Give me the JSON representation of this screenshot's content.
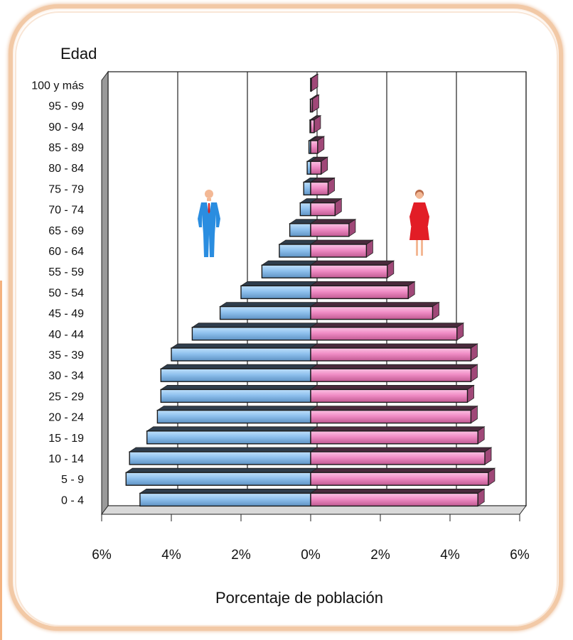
{
  "chart_data": {
    "type": "bar",
    "subtype": "population-pyramid",
    "title": "",
    "ylabel": "Edad",
    "xlabel": "Porcentaje de población",
    "xlim": [
      -6,
      6
    ],
    "x_tick_labels": [
      "6%",
      "4%",
      "2%",
      "0%",
      "2%",
      "4%",
      "6%"
    ],
    "grid": true,
    "categories": [
      "0 - 4",
      "5 - 9",
      "10 - 14",
      "15 - 19",
      "20 - 24",
      "25 - 29",
      "30 - 34",
      "35 - 39",
      "40 - 44",
      "45 - 49",
      "50 - 54",
      "55 - 59",
      "60 - 64",
      "65 - 69",
      "70 - 74",
      "75 - 79",
      "80 - 84",
      "85 - 89",
      "90 - 94",
      "95 - 99",
      "100 y más"
    ],
    "series": [
      {
        "side": "left",
        "icon": "man-figure-icon",
        "color": "#8fc1ee",
        "values": [
          4.9,
          5.3,
          5.2,
          4.7,
          4.4,
          4.3,
          4.3,
          4.0,
          3.4,
          2.6,
          2.0,
          1.4,
          0.9,
          0.6,
          0.3,
          0.2,
          0.1,
          0.05,
          0.02,
          0.01,
          0.0
        ]
      },
      {
        "side": "right",
        "icon": "woman-figure-icon",
        "color": "#f38ec7",
        "values": [
          4.8,
          5.1,
          5.0,
          4.8,
          4.6,
          4.5,
          4.6,
          4.6,
          4.2,
          3.5,
          2.8,
          2.2,
          1.6,
          1.1,
          0.7,
          0.5,
          0.3,
          0.2,
          0.1,
          0.05,
          0.02
        ]
      }
    ]
  }
}
